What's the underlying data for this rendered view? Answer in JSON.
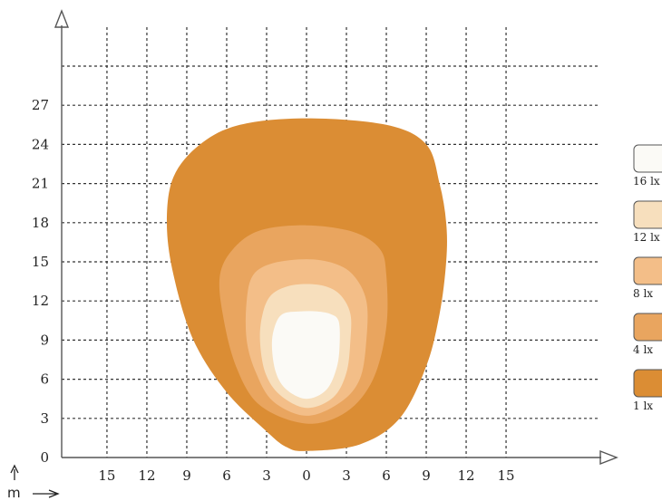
{
  "chart_data": {
    "type": "contour",
    "units": {
      "label": "m"
    },
    "x_ticks": [
      "15",
      "12",
      "9",
      "6",
      "3",
      "0",
      "3",
      "6",
      "9",
      "12",
      "15"
    ],
    "x_values": [
      -15,
      -12,
      -9,
      -6,
      -3,
      0,
      3,
      6,
      9,
      12,
      15
    ],
    "y_ticks": [
      "0",
      "3",
      "6",
      "9",
      "12",
      "15",
      "18",
      "21",
      "24",
      "27"
    ],
    "y_values": [
      0,
      3,
      6,
      9,
      12,
      15,
      18,
      21,
      24,
      27
    ],
    "xlim": [
      -18,
      21
    ],
    "ylim": [
      -1,
      31
    ],
    "grid": true,
    "legend_position": "right",
    "legend": [
      {
        "label": "16 lx",
        "color": "#fbfaf6"
      },
      {
        "label": "12 lx",
        "color": "#f7dfbd"
      },
      {
        "label": "8 lx",
        "color": "#f3be88"
      },
      {
        "label": "4 lx",
        "color": "#e9a55f"
      },
      {
        "label": "1 lx",
        "color": "#db8d34"
      }
    ],
    "isolux_regions": [
      {
        "level": "1 lx",
        "color": "#db8d34",
        "outline": [
          [
            0,
            0.5
          ],
          [
            4,
            1
          ],
          [
            7,
            3
          ],
          [
            9,
            7
          ],
          [
            10,
            11
          ],
          [
            10.5,
            15
          ],
          [
            10.5,
            18
          ],
          [
            10,
            21
          ],
          [
            9,
            24
          ],
          [
            6,
            25.5
          ],
          [
            0,
            26
          ],
          [
            -5,
            25.5
          ],
          [
            -8,
            24
          ],
          [
            -10,
            21.5
          ],
          [
            -10.5,
            18
          ],
          [
            -10,
            14
          ],
          [
            -8.5,
            9
          ],
          [
            -6,
            5
          ],
          [
            -3,
            2
          ],
          [
            -1.5,
            0.8
          ]
        ]
      },
      {
        "level": "4 lx",
        "color": "#e9a55f",
        "outline": [
          [
            0,
            2.6
          ],
          [
            3,
            3.5
          ],
          [
            5,
            6
          ],
          [
            6,
            10
          ],
          [
            6,
            14
          ],
          [
            5.5,
            16
          ],
          [
            3.5,
            17.3
          ],
          [
            0,
            17.8
          ],
          [
            -3.5,
            17.4
          ],
          [
            -5.5,
            16
          ],
          [
            -6.5,
            14
          ],
          [
            -6.3,
            11
          ],
          [
            -5.3,
            7
          ],
          [
            -3.5,
            4
          ]
        ]
      },
      {
        "level": "8 lx",
        "color": "#f3be88",
        "outline": [
          [
            0,
            3.2
          ],
          [
            2.5,
            4.2
          ],
          [
            4,
            6
          ],
          [
            4.5,
            9
          ],
          [
            4.5,
            12
          ],
          [
            3.5,
            14
          ],
          [
            2,
            14.9
          ],
          [
            0,
            15.2
          ],
          [
            -2.5,
            14.9
          ],
          [
            -4,
            14
          ],
          [
            -4.5,
            12
          ],
          [
            -4.5,
            9
          ],
          [
            -3.8,
            6.5
          ],
          [
            -2.5,
            4.3
          ]
        ]
      },
      {
        "level": "12 lx",
        "color": "#f7dfbd",
        "outline": [
          [
            0,
            3.8
          ],
          [
            2,
            4.6
          ],
          [
            3,
            6.5
          ],
          [
            3.3,
            9
          ],
          [
            3.3,
            11
          ],
          [
            2.6,
            12.4
          ],
          [
            1.5,
            13.1
          ],
          [
            0,
            13.3
          ],
          [
            -1.5,
            13.1
          ],
          [
            -2.7,
            12.4
          ],
          [
            -3.3,
            11
          ],
          [
            -3.5,
            9
          ],
          [
            -3.1,
            6.5
          ],
          [
            -2,
            4.8
          ]
        ]
      },
      {
        "level": "16 lx",
        "color": "#fbfaf6",
        "outline": [
          [
            0,
            4.5
          ],
          [
            1.5,
            5.2
          ],
          [
            2.3,
            7
          ],
          [
            2.5,
            9
          ],
          [
            2.4,
            10.5
          ],
          [
            1.8,
            11
          ],
          [
            0.8,
            11.2
          ],
          [
            -0.5,
            11.2
          ],
          [
            -1.8,
            11
          ],
          [
            -2.4,
            10
          ],
          [
            -2.6,
            8.5
          ],
          [
            -2.3,
            6.5
          ],
          [
            -1.5,
            5.2
          ]
        ]
      }
    ]
  }
}
